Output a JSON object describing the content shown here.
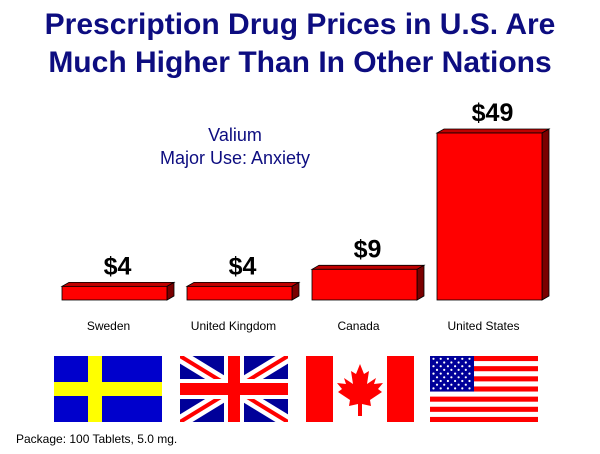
{
  "header": {
    "title_line1": "Prescription Drug Prices in U.S. Are",
    "title_line2": "Much Higher Than In Other Nations"
  },
  "annotation": {
    "line1": "Valium",
    "line2": "Major Use:  Anxiety"
  },
  "footnote": "Package:  100 Tablets, 5.0 mg.",
  "colors": {
    "title": "#0d0d80",
    "bar_front": "#ff0000",
    "bar_top": "#c00000",
    "bar_side": "#7a0000"
  },
  "flags": [
    "sweden-flag",
    "united-kingdom-flag",
    "canada-flag",
    "united-states-flag"
  ],
  "chart_data": {
    "type": "bar",
    "categories": [
      "Sweden",
      "United Kingdom",
      "Canada",
      "United States"
    ],
    "values": [
      4,
      4,
      9,
      49
    ],
    "value_labels": [
      "$4",
      "$4",
      "$9",
      "$49"
    ],
    "ylim": [
      0,
      49
    ],
    "grid": false,
    "legend": "none"
  }
}
